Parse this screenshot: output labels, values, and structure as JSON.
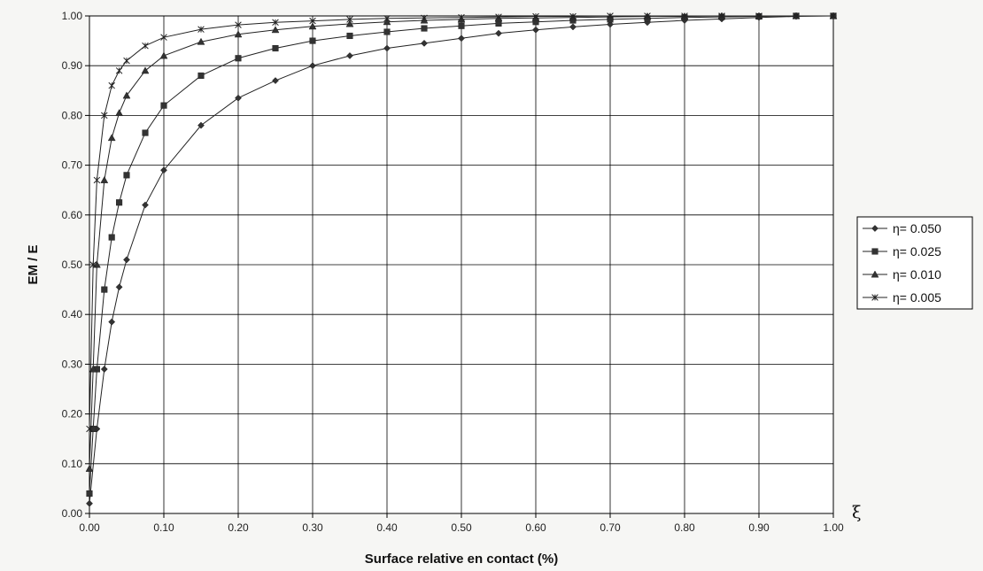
{
  "chart_data": {
    "type": "line",
    "title": "",
    "xlabel": "Surface relative en contact (%)",
    "ylabel": "EM / E",
    "x_symbol": "ξ",
    "xlim": [
      0,
      1
    ],
    "ylim": [
      0,
      1
    ],
    "x_ticks": [
      "0.00",
      "0.10",
      "0.20",
      "0.30",
      "0.40",
      "0.50",
      "0.60",
      "0.70",
      "0.80",
      "0.90",
      "1.00"
    ],
    "y_ticks": [
      "0.00",
      "0.10",
      "0.20",
      "0.30",
      "0.40",
      "0.50",
      "0.60",
      "0.70",
      "0.80",
      "0.90",
      "1.00"
    ],
    "grid": true,
    "legend_position": "right",
    "series": [
      {
        "name": "η= 0.050",
        "marker": "diamond",
        "x": [
          0.0,
          0.01,
          0.02,
          0.03,
          0.04,
          0.05,
          0.075,
          0.1,
          0.15,
          0.2,
          0.25,
          0.3,
          0.35,
          0.4,
          0.45,
          0.5,
          0.55,
          0.6,
          0.65,
          0.7,
          0.75,
          0.8,
          0.85,
          0.9,
          0.95,
          1.0
        ],
        "y": [
          0.02,
          0.17,
          0.29,
          0.385,
          0.455,
          0.51,
          0.62,
          0.69,
          0.78,
          0.835,
          0.87,
          0.9,
          0.92,
          0.935,
          0.945,
          0.955,
          0.965,
          0.972,
          0.978,
          0.983,
          0.987,
          0.991,
          0.994,
          0.997,
          0.999,
          1.0
        ]
      },
      {
        "name": "η= 0.025",
        "marker": "square",
        "x": [
          0.0,
          0.005,
          0.01,
          0.02,
          0.03,
          0.04,
          0.05,
          0.075,
          0.1,
          0.15,
          0.2,
          0.25,
          0.3,
          0.35,
          0.4,
          0.45,
          0.5,
          0.55,
          0.6,
          0.65,
          0.7,
          0.75,
          0.8,
          0.85,
          0.9,
          0.95,
          1.0
        ],
        "y": [
          0.04,
          0.17,
          0.29,
          0.45,
          0.555,
          0.625,
          0.68,
          0.765,
          0.82,
          0.88,
          0.915,
          0.935,
          0.95,
          0.96,
          0.968,
          0.975,
          0.98,
          0.985,
          0.988,
          0.991,
          0.993,
          0.995,
          0.997,
          0.998,
          0.999,
          1.0,
          1.0
        ]
      },
      {
        "name": "η= 0.010",
        "marker": "triangle",
        "x": [
          0.0,
          0.005,
          0.01,
          0.02,
          0.03,
          0.04,
          0.05,
          0.075,
          0.1,
          0.15,
          0.2,
          0.25,
          0.3,
          0.35,
          0.4,
          0.45,
          0.5,
          0.55,
          0.6,
          0.65,
          0.7,
          0.75,
          0.8,
          0.85,
          0.9,
          0.95,
          1.0
        ],
        "y": [
          0.09,
          0.29,
          0.5,
          0.67,
          0.755,
          0.805,
          0.84,
          0.89,
          0.92,
          0.948,
          0.963,
          0.972,
          0.979,
          0.984,
          0.988,
          0.991,
          0.993,
          0.995,
          0.996,
          0.997,
          0.998,
          0.999,
          0.999,
          1.0,
          1.0,
          1.0,
          1.0
        ]
      },
      {
        "name": "η= 0.005",
        "marker": "star",
        "x": [
          0.0,
          0.005,
          0.01,
          0.02,
          0.03,
          0.04,
          0.05,
          0.075,
          0.1,
          0.15,
          0.2,
          0.25,
          0.3,
          0.35,
          0.4,
          0.45,
          0.5,
          0.55,
          0.6,
          0.65,
          0.7,
          0.75,
          0.8,
          0.85,
          0.9,
          0.95,
          1.0
        ],
        "y": [
          0.17,
          0.5,
          0.67,
          0.8,
          0.86,
          0.89,
          0.91,
          0.94,
          0.957,
          0.973,
          0.982,
          0.987,
          0.99,
          0.993,
          0.995,
          0.996,
          0.997,
          0.998,
          0.999,
          0.999,
          1.0,
          1.0,
          1.0,
          1.0,
          1.0,
          1.0,
          1.0
        ]
      }
    ]
  }
}
